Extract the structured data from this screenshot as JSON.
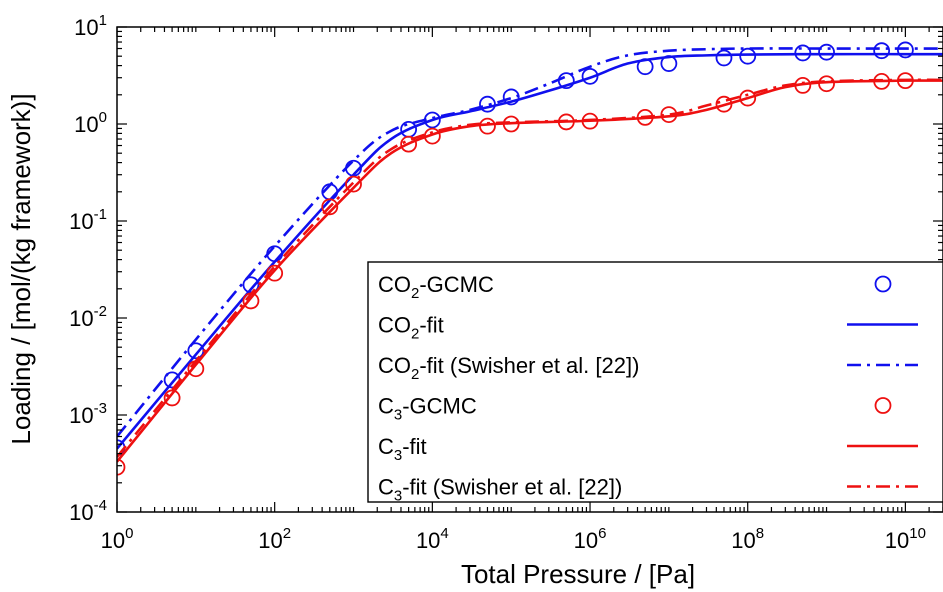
{
  "chart_data": {
    "type": "line",
    "xlabel": "Total Pressure / [Pa]",
    "ylabel": "Loading / [mol/(kg framework)]",
    "x_scale": "log",
    "y_scale": "log",
    "xlim": [
      1,
      30000000000
    ],
    "ylim": [
      0.0001,
      10
    ],
    "x_ticks": [
      {
        "value": 1,
        "base": "10",
        "exp": "0"
      },
      {
        "value": 100,
        "base": "10",
        "exp": "2"
      },
      {
        "value": 10000,
        "base": "10",
        "exp": "4"
      },
      {
        "value": 1000000,
        "base": "10",
        "exp": "6"
      },
      {
        "value": 100000000,
        "base": "10",
        "exp": "8"
      },
      {
        "value": 10000000000,
        "base": "10",
        "exp": "10"
      }
    ],
    "y_ticks": [
      {
        "value": 0.0001,
        "base": "10",
        "exp": "-4"
      },
      {
        "value": 0.001,
        "base": "10",
        "exp": "-3"
      },
      {
        "value": 0.01,
        "base": "10",
        "exp": "-2"
      },
      {
        "value": 0.1,
        "base": "10",
        "exp": "-1"
      },
      {
        "value": 1,
        "base": "10",
        "exp": "0"
      },
      {
        "value": 10,
        "base": "10",
        "exp": "1"
      }
    ],
    "legend_position": "bottom-right",
    "series": [
      {
        "name": "CO2-GCMC",
        "label": {
          "pre": "CO",
          "sub": "2",
          "post": "-GCMC"
        },
        "kind": "markers",
        "color": "#1010ee",
        "x": [
          1,
          5,
          10,
          50,
          100,
          500,
          1000,
          5000,
          10000,
          50000,
          100000,
          500000,
          1000000,
          5000000,
          10000000,
          50000000,
          100000000,
          500000000,
          1000000000,
          5000000000,
          10000000000
        ],
        "y": [
          0.00046,
          0.0023,
          0.0046,
          0.022,
          0.046,
          0.2,
          0.35,
          0.88,
          1.1,
          1.6,
          1.9,
          2.8,
          3.1,
          3.9,
          4.2,
          4.8,
          5.0,
          5.4,
          5.5,
          5.7,
          5.8
        ]
      },
      {
        "name": "CO2-fit",
        "label": {
          "pre": "CO",
          "sub": "2",
          "post": "-fit"
        },
        "kind": "solid",
        "color": "#1010ee",
        "x": [
          1,
          10,
          100,
          1000,
          3000,
          10000,
          30000,
          100000,
          300000,
          1000000,
          3000000,
          10000000,
          30000000,
          100000000,
          1000000000,
          10000000000,
          30000000000
        ],
        "y": [
          0.00045,
          0.0042,
          0.038,
          0.3,
          0.7,
          1.1,
          1.35,
          1.7,
          2.2,
          3.0,
          4.2,
          4.9,
          5.1,
          5.2,
          5.25,
          5.25,
          5.25
        ]
      },
      {
        "name": "CO2-fit (Swisher et al. [22])",
        "label": {
          "pre": "CO",
          "sub": "2",
          "post": "-fit (Swisher et al. [22])"
        },
        "kind": "dashdot",
        "color": "#1010ee",
        "x": [
          1,
          10,
          100,
          1000,
          3000,
          10000,
          30000,
          100000,
          300000,
          1000000,
          3000000,
          10000000,
          30000000,
          100000000,
          1000000000,
          10000000000,
          30000000000
        ],
        "y": [
          0.0006,
          0.006,
          0.055,
          0.42,
          0.85,
          1.15,
          1.4,
          1.85,
          2.6,
          3.9,
          5.1,
          5.7,
          5.9,
          6.0,
          6.0,
          6.0,
          6.0
        ]
      },
      {
        "name": "C3-GCMC",
        "label": {
          "pre": "C",
          "sub": "3",
          "post": "-GCMC"
        },
        "kind": "markers",
        "color": "#ee1010",
        "x": [
          1,
          5,
          10,
          50,
          100,
          500,
          1000,
          5000,
          10000,
          50000,
          100000,
          500000,
          1000000,
          5000000,
          10000000,
          50000000,
          100000000,
          500000000,
          1000000000,
          5000000000,
          10000000000
        ],
        "y": [
          0.00029,
          0.0015,
          0.003,
          0.015,
          0.029,
          0.14,
          0.24,
          0.62,
          0.75,
          0.95,
          1.0,
          1.05,
          1.07,
          1.17,
          1.25,
          1.6,
          1.85,
          2.5,
          2.6,
          2.75,
          2.8
        ]
      },
      {
        "name": "C3-fit",
        "label": {
          "pre": "C",
          "sub": "3",
          "post": "-fit"
        },
        "kind": "solid",
        "color": "#ee1010",
        "x": [
          1,
          10,
          100,
          1000,
          3000,
          10000,
          30000,
          100000,
          1000000,
          10000000,
          30000000,
          100000000,
          300000000,
          1000000000,
          10000000000,
          30000000000
        ],
        "y": [
          0.00033,
          0.0033,
          0.031,
          0.22,
          0.5,
          0.78,
          0.95,
          1.02,
          1.08,
          1.2,
          1.4,
          1.85,
          2.4,
          2.7,
          2.8,
          2.8
        ]
      },
      {
        "name": "C3-fit (Swisher et al. [22])",
        "label": {
          "pre": "C",
          "sub": "3",
          "post": "-fit (Swisher et al. [22])"
        },
        "kind": "dashdot",
        "color": "#ee1010",
        "x": [
          1,
          10,
          100,
          1000,
          3000,
          10000,
          30000,
          100000,
          1000000,
          10000000,
          30000000,
          100000000,
          300000000,
          1000000000,
          10000000000,
          30000000000
        ],
        "y": [
          0.00037,
          0.0036,
          0.034,
          0.25,
          0.55,
          0.82,
          0.98,
          1.04,
          1.1,
          1.25,
          1.55,
          2.0,
          2.5,
          2.75,
          2.85,
          2.85
        ]
      }
    ]
  }
}
